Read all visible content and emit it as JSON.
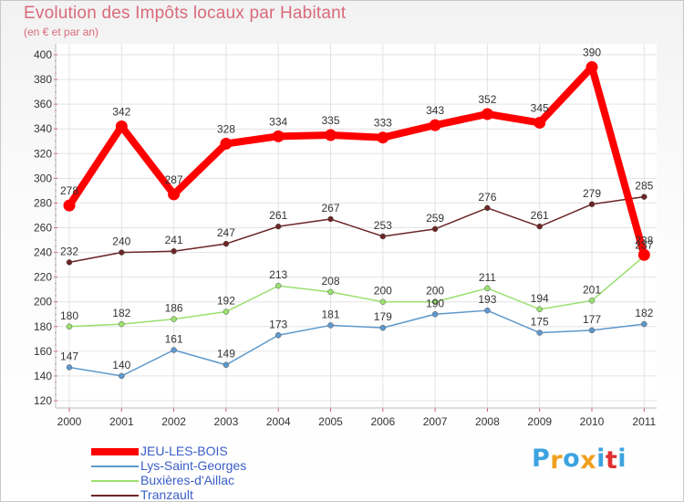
{
  "chart_data": {
    "type": "line",
    "title": "Evolution des Impôts locaux par Habitant",
    "subtitle": "(en € et par an)",
    "x": [
      "2000",
      "2001",
      "2002",
      "2003",
      "2004",
      "2005",
      "2006",
      "2007",
      "2008",
      "2009",
      "2010",
      "2011"
    ],
    "ylim": [
      120,
      400
    ],
    "yticks": [
      120,
      140,
      160,
      180,
      200,
      220,
      240,
      260,
      280,
      300,
      320,
      340,
      360,
      380,
      400
    ],
    "grid": true,
    "legend_position": "bottom-left",
    "series": [
      {
        "name": "JEU-LES-BOIS",
        "values": [
          278,
          342,
          287,
          328,
          334,
          335,
          333,
          343,
          352,
          345,
          390,
          238
        ],
        "color": "#ff0000"
      },
      {
        "name": "Lys-Saint-Georges",
        "values": [
          147,
          140,
          161,
          149,
          173,
          181,
          179,
          190,
          193,
          175,
          177,
          182
        ],
        "color": "#5e98cc"
      },
      {
        "name": "Buxières-d'Aillac",
        "values": [
          180,
          182,
          186,
          192,
          213,
          208,
          200,
          200,
          211,
          194,
          201,
          237
        ],
        "color": "#9be070"
      },
      {
        "name": "Tranzault",
        "values": [
          232,
          240,
          241,
          247,
          261,
          267,
          253,
          259,
          276,
          261,
          279,
          285
        ],
        "color": "#6b2626"
      }
    ]
  },
  "brand": {
    "letters": [
      "P",
      "r",
      "o",
      "x",
      "i",
      "t",
      "i"
    ],
    "colors": [
      "#3da3e0",
      "#f0a020",
      "#3da3e0",
      "#f0a020",
      "#3da3e0",
      "#e03030",
      "#3da3e0"
    ]
  }
}
